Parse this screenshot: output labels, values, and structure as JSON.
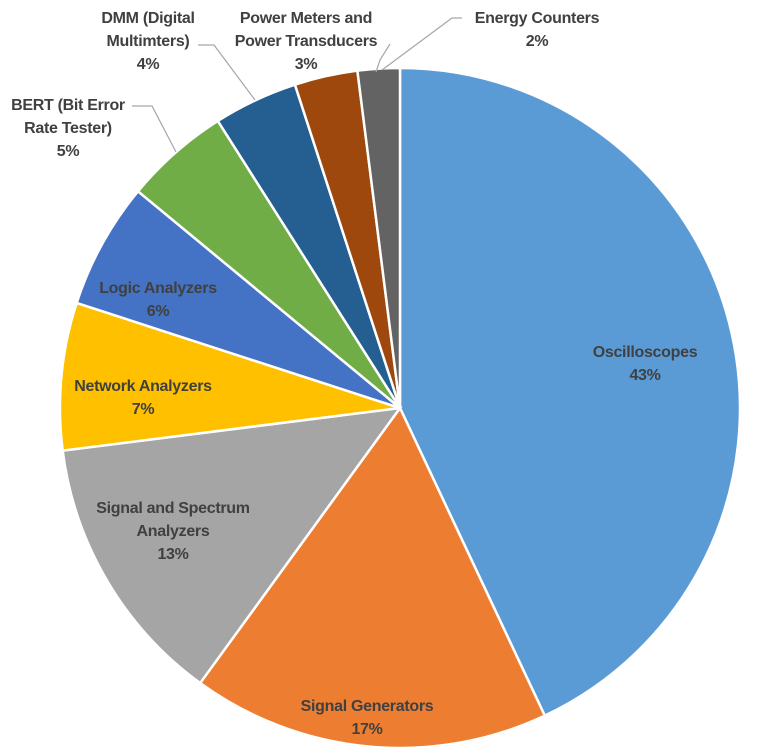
{
  "chart_data": {
    "type": "pie",
    "categories": [
      "Oscilloscopes",
      "Signal Generators",
      "Signal and Spectrum Analyzers",
      "Network Analyzers",
      "Logic Analyzers",
      "BERT (Bit Error Rate Tester)",
      "DMM (Digital Multimters)",
      "Power Meters and Power Transducers",
      "Energy Counters"
    ],
    "values": [
      43,
      17,
      13,
      7,
      6,
      5,
      4,
      3,
      2
    ],
    "value_labels": [
      "43%",
      "17%",
      "13%",
      "7%",
      "6%",
      "5%",
      "4%",
      "3%",
      "2%"
    ],
    "colors": [
      "#5b9bd5",
      "#ed7d31",
      "#a5a5a5",
      "#ffc000",
      "#4472c4",
      "#70ad47",
      "#255e91",
      "#9e480e",
      "#636363"
    ]
  }
}
